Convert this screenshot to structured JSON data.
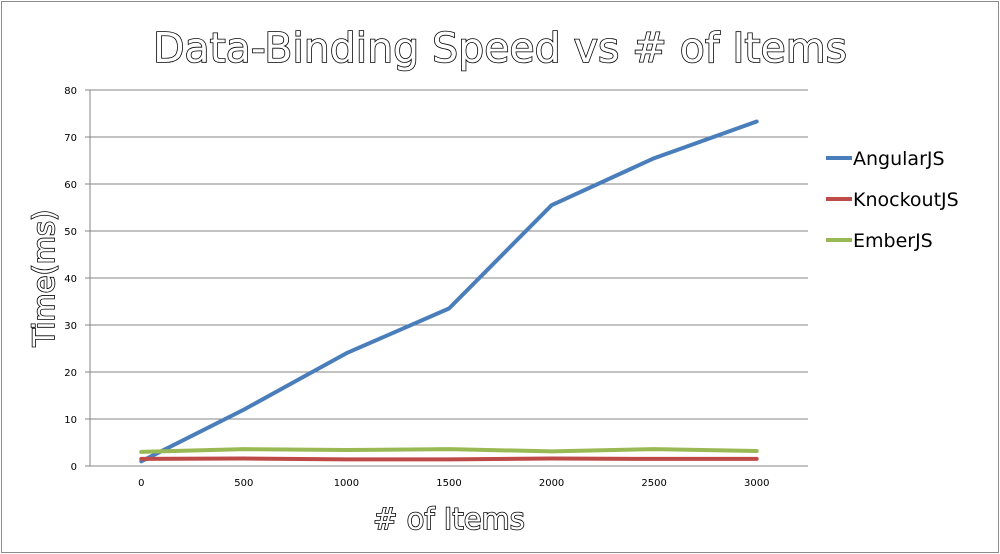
{
  "chart_data": {
    "type": "line",
    "title": "Data-Binding Speed vs # of Items",
    "xlabel": "# of Items",
    "ylabel": "Time(ms)",
    "categories": [
      "0",
      "500",
      "1000",
      "1500",
      "2000",
      "2500",
      "3000"
    ],
    "ylim": [
      0,
      80
    ],
    "yticks": [
      0,
      10,
      20,
      30,
      40,
      50,
      60,
      70,
      80
    ],
    "grid": true,
    "legend": "right",
    "series": [
      {
        "name": "AngularJS",
        "color": "#4a7ebb",
        "values": [
          1,
          12,
          24,
          33.5,
          55.5,
          65.5,
          73.3
        ]
      },
      {
        "name": "KnockoutJS",
        "color": "#be4b48",
        "values": [
          1.5,
          1.6,
          1.4,
          1.4,
          1.6,
          1.5,
          1.5
        ]
      },
      {
        "name": "EmberJS",
        "color": "#98b954",
        "values": [
          3.0,
          3.6,
          3.4,
          3.6,
          3.1,
          3.6,
          3.2
        ]
      }
    ]
  }
}
